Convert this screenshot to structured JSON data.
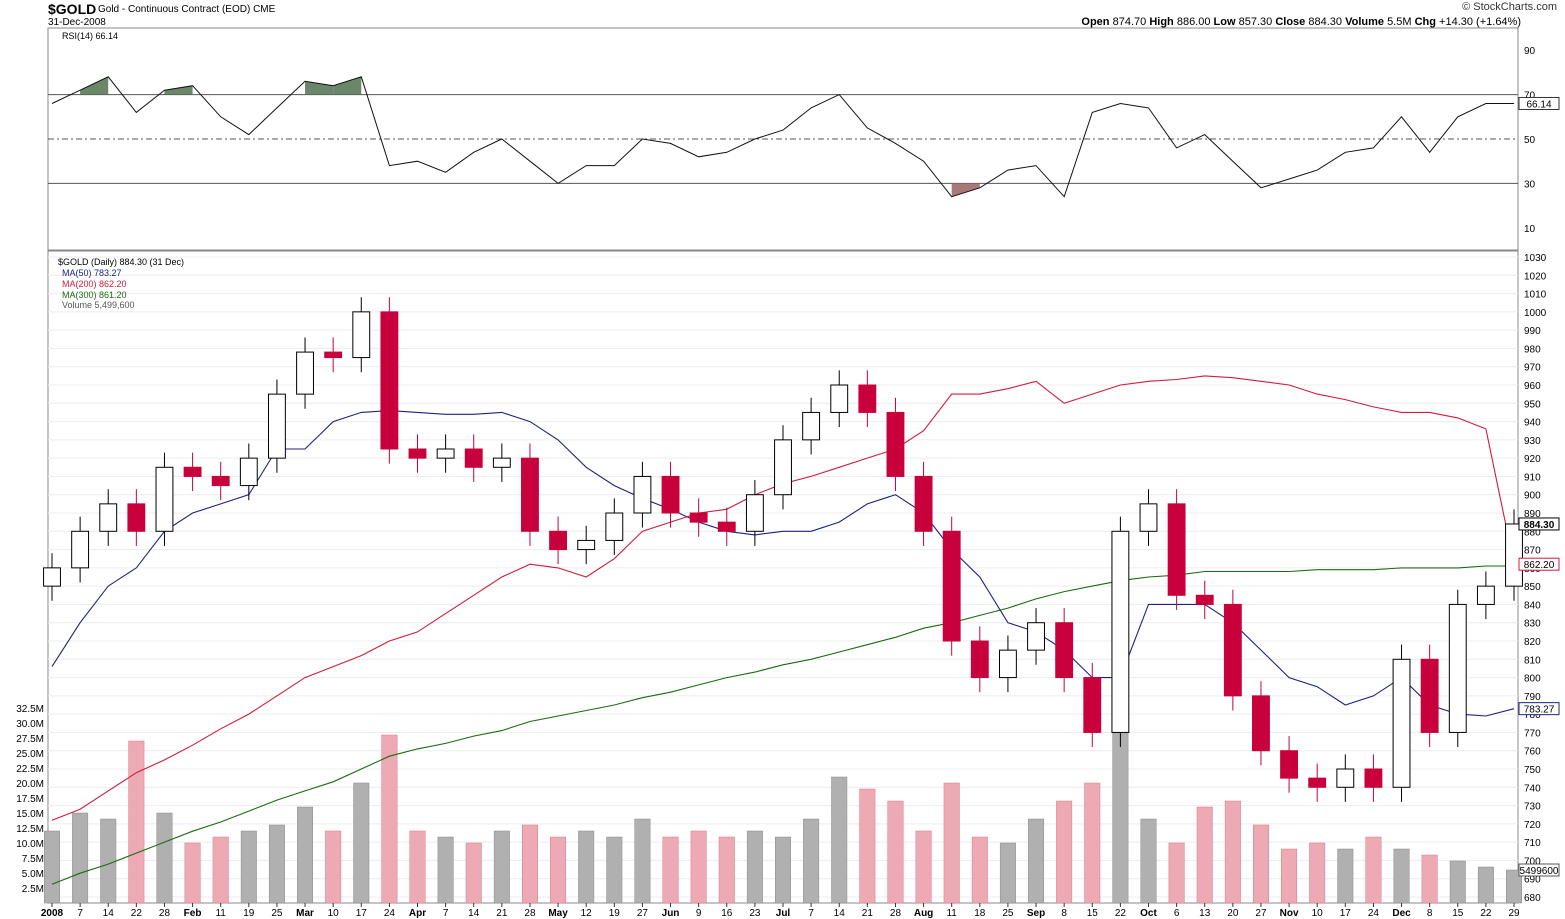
{
  "header": {
    "symbol": "$GOLD",
    "description": "Gold - Continuous Contract (EOD)",
    "exchange": "CME",
    "date": "31-Dec-2008",
    "brand": "© StockCharts.com",
    "open_label": "Open",
    "open": "874.70",
    "high_label": "High",
    "high": "886.00",
    "low_label": "Low",
    "low": "857.30",
    "close_label": "Close",
    "close": "884.30",
    "volume_label": "Volume",
    "volume": "5.5M",
    "chg_label": "Chg",
    "chg": "+14.30 (+1.64%)"
  },
  "colors": {
    "up": "#000000",
    "down": "#c8003c",
    "ma50": "#1a237e",
    "ma200": "#d01c3c",
    "ma300": "#1b6b12",
    "vol_up": "#b0b0b0",
    "vol_down": "#eeaab4",
    "rsi_over": "#5a7a5a",
    "rsi_under": "#a06a6a"
  },
  "chart_data": [
    {
      "type": "line",
      "title": "RSI(14) 66.14",
      "series": [
        {
          "name": "RSI(14)",
          "last": "66.14",
          "x": [
            "Jan 2",
            "Jan 7",
            "Jan 14",
            "Jan 22",
            "Jan 28",
            "Feb 4",
            "Feb 11",
            "Feb 19",
            "Feb 25",
            "Mar 3",
            "Mar 10",
            "Mar 17",
            "Mar 24",
            "Apr 1",
            "Apr 7",
            "Apr 14",
            "Apr 21",
            "Apr 28",
            "May 5",
            "May 12",
            "May 19",
            "May 27",
            "Jun 2",
            "Jun 9",
            "Jun 16",
            "Jun 23",
            "Jul 1",
            "Jul 7",
            "Jul 14",
            "Jul 21",
            "Jul 28",
            "Aug 4",
            "Aug 11",
            "Aug 18",
            "Aug 25",
            "Sep 2",
            "Sep 8",
            "Sep 15",
            "Sep 22",
            "Sep 29",
            "Oct 6",
            "Oct 13",
            "Oct 20",
            "Oct 27",
            "Nov 3",
            "Nov 10",
            "Nov 17",
            "Nov 24",
            "Dec 1",
            "Dec 8",
            "Dec 15",
            "Dec 22",
            "Dec 31"
          ],
          "values": [
            66,
            72,
            78,
            62,
            72,
            74,
            60,
            52,
            64,
            76,
            74,
            78,
            38,
            40,
            35,
            44,
            50,
            40,
            30,
            38,
            38,
            50,
            48,
            42,
            44,
            50,
            54,
            64,
            70,
            55,
            48,
            40,
            24,
            28,
            36,
            38,
            24,
            62,
            66,
            64,
            46,
            52,
            40,
            28,
            32,
            36,
            44,
            46,
            60,
            44,
            60,
            66,
            66
          ]
        }
      ],
      "ylim": [
        0,
        100
      ],
      "reference_lines": [
        70,
        50,
        30
      ],
      "yticks": [
        10,
        30,
        50,
        70,
        90
      ],
      "last_label": "66.14"
    },
    {
      "type": "candlestick",
      "title": "$GOLD (Daily) 884.30 (31 Dec)",
      "x": [
        "Jan 2",
        "Jan 7",
        "Jan 14",
        "Jan 22",
        "Jan 28",
        "Feb 4",
        "Feb 11",
        "Feb 19",
        "Feb 25",
        "Mar 3",
        "Mar 10",
        "Mar 17",
        "Mar 24",
        "Apr 1",
        "Apr 7",
        "Apr 14",
        "Apr 21",
        "Apr 28",
        "May 5",
        "May 12",
        "May 19",
        "May 27",
        "Jun 2",
        "Jun 9",
        "Jun 16",
        "Jun 23",
        "Jul 1",
        "Jul 7",
        "Jul 14",
        "Jul 21",
        "Jul 28",
        "Aug 4",
        "Aug 11",
        "Aug 18",
        "Aug 25",
        "Sep 2",
        "Sep 8",
        "Sep 15",
        "Sep 22",
        "Sep 29",
        "Oct 6",
        "Oct 13",
        "Oct 20",
        "Oct 27",
        "Nov 3",
        "Nov 10",
        "Nov 17",
        "Nov 24",
        "Dec 1",
        "Dec 8",
        "Dec 15",
        "Dec 22",
        "Dec 31"
      ],
      "close": [
        860,
        880,
        895,
        880,
        915,
        910,
        905,
        920,
        955,
        978,
        975,
        1000,
        925,
        920,
        925,
        915,
        920,
        880,
        870,
        875,
        890,
        910,
        890,
        885,
        880,
        900,
        930,
        945,
        960,
        945,
        910,
        880,
        820,
        800,
        815,
        830,
        800,
        770,
        880,
        895,
        845,
        840,
        790,
        760,
        745,
        740,
        750,
        740,
        810,
        770,
        840,
        850,
        884
      ],
      "series": [
        {
          "name": "MA(50)",
          "last": "783.27",
          "values": [
            806,
            830,
            850,
            860,
            880,
            890,
            895,
            900,
            925,
            925,
            940,
            945,
            946,
            945,
            944,
            944,
            945,
            940,
            930,
            915,
            905,
            898,
            892,
            885,
            880,
            878,
            880,
            880,
            885,
            895,
            900,
            890,
            870,
            855,
            830,
            825,
            815,
            800,
            800,
            840,
            840,
            840,
            830,
            815,
            800,
            795,
            785,
            790,
            800,
            785,
            780,
            779,
            783
          ]
        },
        {
          "name": "MA(200)",
          "last": "862.20",
          "values": [
            722,
            728,
            738,
            748,
            755,
            763,
            772,
            780,
            790,
            800,
            806,
            812,
            820,
            825,
            835,
            845,
            855,
            862,
            860,
            855,
            865,
            880,
            885,
            890,
            892,
            900,
            906,
            910,
            915,
            920,
            925,
            935,
            955,
            955,
            958,
            962,
            950,
            955,
            960,
            962,
            963,
            965,
            964,
            962,
            960,
            955,
            952,
            948,
            945,
            945,
            942,
            936,
            862
          ]
        },
        {
          "name": "MA(300)",
          "last": "861.20",
          "values": [
            687,
            693,
            698,
            704,
            710,
            716,
            721,
            727,
            733,
            738,
            743,
            750,
            757,
            761,
            764,
            768,
            771,
            776,
            779,
            782,
            785,
            789,
            792,
            796,
            800,
            803,
            807,
            810,
            814,
            818,
            822,
            827,
            830,
            834,
            838,
            843,
            847,
            850,
            853,
            855,
            856,
            858,
            858,
            858,
            858,
            859,
            859,
            859,
            860,
            860,
            860,
            861,
            861
          ]
        }
      ],
      "ylim": [
        680,
        1030
      ],
      "yticks": [
        680,
        690,
        700,
        710,
        720,
        730,
        740,
        750,
        760,
        770,
        780,
        790,
        800,
        810,
        820,
        830,
        840,
        850,
        860,
        870,
        880,
        890,
        900,
        910,
        920,
        930,
        940,
        950,
        960,
        970,
        980,
        990,
        1000,
        1010,
        1020,
        1030
      ],
      "last_label": "884.30"
    },
    {
      "type": "bar",
      "title": "Volume 5,499,600",
      "x": [
        "Jan 2",
        "Jan 7",
        "Jan 14",
        "Jan 22",
        "Jan 28",
        "Feb 4",
        "Feb 11",
        "Feb 19",
        "Feb 25",
        "Mar 3",
        "Mar 10",
        "Mar 17",
        "Mar 24",
        "Apr 1",
        "Apr 7",
        "Apr 14",
        "Apr 21",
        "Apr 28",
        "May 5",
        "May 12",
        "May 19",
        "May 27",
        "Jun 2",
        "Jun 9",
        "Jun 16",
        "Jun 23",
        "Jul 1",
        "Jul 7",
        "Jul 14",
        "Jul 21",
        "Jul 28",
        "Aug 4",
        "Aug 11",
        "Aug 18",
        "Aug 25",
        "Sep 2",
        "Sep 8",
        "Sep 15",
        "Sep 22",
        "Sep 29",
        "Oct 6",
        "Oct 13",
        "Oct 20",
        "Oct 27",
        "Nov 3",
        "Nov 10",
        "Nov 17",
        "Nov 24",
        "Dec 1",
        "Dec 8",
        "Dec 15",
        "Dec 22",
        "Dec 31"
      ],
      "values": [
        12,
        15,
        14,
        27,
        15,
        10,
        11,
        12,
        13,
        16,
        12,
        20,
        28,
        12,
        11,
        10,
        12,
        13,
        11,
        12,
        11,
        14,
        11,
        12,
        11,
        12,
        11,
        14,
        21,
        19,
        17,
        12,
        20,
        11,
        10,
        14,
        17,
        20,
        30,
        14,
        10,
        16,
        17,
        13,
        9,
        10,
        9,
        11,
        9,
        8,
        7,
        6,
        5.5
      ],
      "ylim": [
        0,
        32.5
      ],
      "yticks": [
        "2.5M",
        "5.0M",
        "7.5M",
        "10.0M",
        "12.5M",
        "15.0M",
        "17.5M",
        "20.0M",
        "22.5M",
        "25.0M",
        "27.5M",
        "30.0M",
        "32.5M"
      ],
      "last_label": "5499600"
    }
  ],
  "legend": {
    "title": "$GOLD (Daily) 884.30 (31 Dec)",
    "ma50": "MA(50) 783.27",
    "ma200": "MA(200) 862.20",
    "ma300": "MA(300) 861.20",
    "volume": "Volume 5,499,600"
  },
  "rsi_label": "RSI(14) 66.14",
  "x_axis": {
    "labels": [
      "2008",
      "7",
      "14",
      "22",
      "28",
      "Feb",
      "11",
      "19",
      "25",
      "Mar",
      "10",
      "17",
      "24",
      "Apr",
      "7",
      "14",
      "21",
      "28",
      "May",
      "12",
      "19",
      "27",
      "Jun",
      "9",
      "16",
      "23",
      "Jul",
      "7",
      "14",
      "21",
      "28",
      "Aug",
      "11",
      "18",
      "25",
      "Sep",
      "8",
      "15",
      "22",
      "Oct",
      "6",
      "13",
      "20",
      "27",
      "Nov",
      "10",
      "17",
      "24",
      "Dec",
      "8",
      "15",
      "22",
      "29"
    ],
    "bold": [
      "2008",
      "Feb",
      "Mar",
      "Apr",
      "May",
      "Jun",
      "Jul",
      "Aug",
      "Sep",
      "Oct",
      "Nov",
      "Dec"
    ]
  }
}
